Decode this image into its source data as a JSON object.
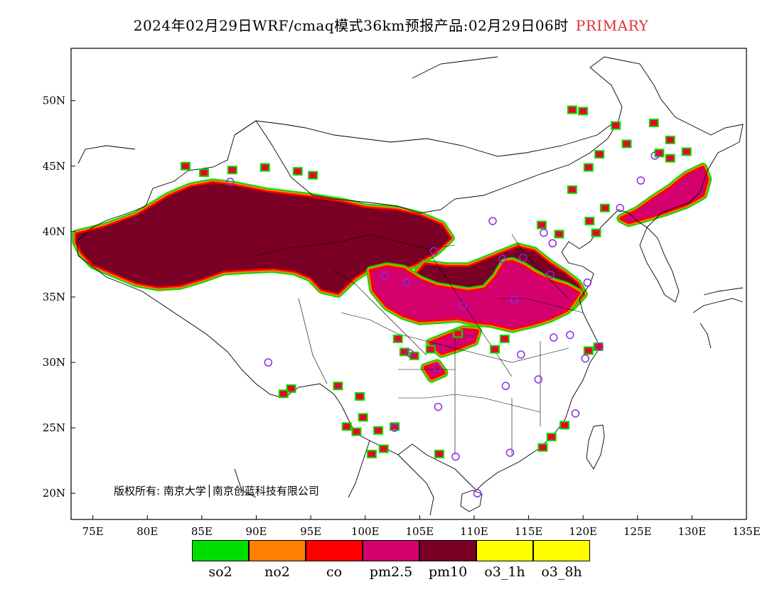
{
  "title": {
    "main": "2024年02月29日WRF/cmaq模式36km预报产品:02月29日06时",
    "tag": "PRIMARY",
    "tag_color": "#e03030"
  },
  "copyright": "版权所有: 南京大学│南京创蓝科技有限公司",
  "axes": {
    "lon_ticks": [
      "75E",
      "80E",
      "85E",
      "90E",
      "95E",
      "100E",
      "105E",
      "110E",
      "115E",
      "120E",
      "125E",
      "130E",
      "135E"
    ],
    "lat_ticks": [
      "50N",
      "45N",
      "40N",
      "35N",
      "30N",
      "25N",
      "20N"
    ],
    "lon_range": [
      73,
      135
    ],
    "lat_range": [
      18,
      54
    ]
  },
  "legend": [
    {
      "label": "so2",
      "color": "#00dd00"
    },
    {
      "label": "no2",
      "color": "#ff8000"
    },
    {
      "label": "co",
      "color": "#ff0000"
    },
    {
      "label": "pm2.5",
      "color": "#d4006e"
    },
    {
      "label": "pm10",
      "color": "#7a0025"
    },
    {
      "label": "o3_1h",
      "color": "#ffff00"
    },
    {
      "label": "o3_8h",
      "color": "#ffff00"
    }
  ],
  "pollution_regions": [
    {
      "name": "xinjiang-qinghai-inner-mongolia",
      "primary": "pm10",
      "points": [
        [
          73.5,
          39.8
        ],
        [
          76,
          40.3
        ],
        [
          79,
          41.2
        ],
        [
          82,
          42.7
        ],
        [
          84,
          43.4
        ],
        [
          86,
          43.7
        ],
        [
          88,
          43.5
        ],
        [
          91,
          43.0
        ],
        [
          95,
          42.6
        ],
        [
          98,
          42.2
        ],
        [
          100,
          41.8
        ],
        [
          103,
          41.6
        ],
        [
          105,
          41.2
        ],
        [
          107,
          40.5
        ],
        [
          107.8,
          39.5
        ],
        [
          106.5,
          38.5
        ],
        [
          104.5,
          37.5
        ],
        [
          102.5,
          37.0
        ],
        [
          100.5,
          37.3
        ],
        [
          99,
          36.5
        ],
        [
          97.5,
          35.3
        ],
        [
          96,
          35.6
        ],
        [
          95,
          36.5
        ],
        [
          93.5,
          37.0
        ],
        [
          91.5,
          37.2
        ],
        [
          89,
          37.1
        ],
        [
          87,
          37.0
        ],
        [
          85,
          36.4
        ],
        [
          83,
          35.9
        ],
        [
          81,
          35.8
        ],
        [
          79,
          36.1
        ],
        [
          77,
          36.8
        ],
        [
          75,
          37.5
        ],
        [
          74,
          38.4
        ],
        [
          73.5,
          39.2
        ]
      ]
    },
    {
      "name": "north-china-plain-pm10",
      "primary": "pm10",
      "points": [
        [
          105.5,
          37.5
        ],
        [
          107.5,
          37.3
        ],
        [
          109.5,
          37.3
        ],
        [
          111,
          37.8
        ],
        [
          112.5,
          38.3
        ],
        [
          114,
          38.8
        ],
        [
          115.5,
          38.5
        ],
        [
          117,
          37.5
        ],
        [
          118.3,
          36.8
        ],
        [
          119.5,
          36.0
        ],
        [
          120,
          35.2
        ],
        [
          119,
          34.3
        ],
        [
          117.5,
          33.7
        ],
        [
          116,
          33.3
        ],
        [
          114,
          33.0
        ],
        [
          112,
          33.2
        ],
        [
          110.5,
          33.4
        ],
        [
          109,
          33.6
        ],
        [
          107.5,
          34.0
        ],
        [
          106,
          34.5
        ],
        [
          105,
          35.5
        ],
        [
          104.5,
          36.5
        ]
      ]
    },
    {
      "name": "loess-pm25",
      "primary": "pm2.5",
      "points": [
        [
          100.5,
          37.0
        ],
        [
          102,
          37.3
        ],
        [
          103.5,
          37.1
        ],
        [
          105,
          36.3
        ],
        [
          106.5,
          35.8
        ],
        [
          108,
          35.6
        ],
        [
          109.5,
          35.4
        ],
        [
          111,
          35.6
        ],
        [
          112,
          36.5
        ],
        [
          112.8,
          37.6
        ],
        [
          113.5,
          37.7
        ],
        [
          114.6,
          37.3
        ],
        [
          115.5,
          36.8
        ],
        [
          117,
          36.2
        ],
        [
          118.5,
          35.8
        ],
        [
          119.6,
          35.3
        ],
        [
          118.5,
          34.0
        ],
        [
          117,
          33.4
        ],
        [
          115.5,
          33.0
        ],
        [
          113.5,
          32.6
        ],
        [
          111.5,
          33.0
        ],
        [
          110,
          33.1
        ],
        [
          108.5,
          33.4
        ],
        [
          107,
          33.3
        ],
        [
          105,
          33.2
        ],
        [
          103.5,
          33.6
        ],
        [
          102,
          34.3
        ],
        [
          100.8,
          35.5
        ]
      ]
    },
    {
      "name": "northeast-pm25",
      "primary": "pm2.5",
      "points": [
        [
          123.5,
          41.0
        ],
        [
          125,
          41.6
        ],
        [
          126.5,
          42.5
        ],
        [
          128,
          43.3
        ],
        [
          129.5,
          44.3
        ],
        [
          131,
          44.9
        ],
        [
          131.4,
          44.0
        ],
        [
          131,
          42.8
        ],
        [
          129.5,
          42.1
        ],
        [
          127.5,
          41.5
        ],
        [
          125.5,
          41.0
        ],
        [
          124.2,
          40.7
        ]
      ]
    },
    {
      "name": "sichuan-basin",
      "primary": "pm2.5",
      "points": [
        [
          106,
          31.5
        ],
        [
          107.5,
          32.0
        ],
        [
          109,
          32.5
        ],
        [
          110.3,
          32.4
        ],
        [
          110,
          31.6
        ],
        [
          108.5,
          31.1
        ],
        [
          107,
          30.7
        ]
      ]
    },
    {
      "name": "chongqing-patch",
      "primary": "pm2.5",
      "points": [
        [
          105.5,
          29.6
        ],
        [
          106.6,
          29.9
        ],
        [
          107.2,
          29.2
        ],
        [
          106.1,
          28.8
        ]
      ]
    }
  ],
  "spots": [
    [
      83.5,
      45.0
    ],
    [
      85.2,
      44.5
    ],
    [
      87.8,
      44.7
    ],
    [
      90.8,
      44.9
    ],
    [
      93.8,
      44.6
    ],
    [
      95.2,
      44.3
    ],
    [
      119,
      49.3
    ],
    [
      120,
      49.2
    ],
    [
      123,
      48.1
    ],
    [
      126.5,
      48.3
    ],
    [
      128,
      47.0
    ],
    [
      124,
      46.7
    ],
    [
      127,
      46.0
    ],
    [
      128,
      45.6
    ],
    [
      129.5,
      46.1
    ],
    [
      121.5,
      45.9
    ],
    [
      120.5,
      44.9
    ],
    [
      119,
      43.2
    ],
    [
      122,
      41.8
    ],
    [
      120.6,
      40.8
    ],
    [
      121.2,
      39.9
    ],
    [
      117.8,
      39.8
    ],
    [
      116.2,
      40.5
    ],
    [
      103,
      31.8
    ],
    [
      104.5,
      30.5
    ],
    [
      106,
      31.0
    ],
    [
      103.6,
      30.8
    ],
    [
      93.2,
      28.0
    ],
    [
      92.5,
      27.6
    ],
    [
      97.5,
      28.2
    ],
    [
      99.5,
      27.4
    ],
    [
      99.8,
      25.8
    ],
    [
      99.2,
      24.7
    ],
    [
      101.2,
      24.8
    ],
    [
      102.7,
      25.1
    ],
    [
      101.7,
      23.4
    ],
    [
      98.3,
      25.1
    ],
    [
      100.6,
      23.0
    ],
    [
      111.9,
      31.0
    ],
    [
      112.8,
      31.8
    ],
    [
      120.5,
      30.9
    ],
    [
      121.4,
      31.2
    ],
    [
      118.3,
      25.2
    ],
    [
      117.1,
      24.3
    ],
    [
      116.3,
      23.5
    ],
    [
      106.8,
      23.0
    ],
    [
      108.5,
      32.2
    ]
  ],
  "cities": [
    [
      87.6,
      43.8
    ],
    [
      91.1,
      30.0
    ],
    [
      101.8,
      36.6
    ],
    [
      103.8,
      36.1
    ],
    [
      106.3,
      38.5
    ],
    [
      111.7,
      40.8
    ],
    [
      116.4,
      39.9
    ],
    [
      117.2,
      39.1
    ],
    [
      114.5,
      38.0
    ],
    [
      112.6,
      37.9
    ],
    [
      113.7,
      34.8
    ],
    [
      108.9,
      34.3
    ],
    [
      117.0,
      36.7
    ],
    [
      120.4,
      36.1
    ],
    [
      117.3,
      31.9
    ],
    [
      118.8,
      32.1
    ],
    [
      120.2,
      30.3
    ],
    [
      121.5,
      31.2
    ],
    [
      114.3,
      30.6
    ],
    [
      112.9,
      28.2
    ],
    [
      115.9,
      28.7
    ],
    [
      119.3,
      26.1
    ],
    [
      113.3,
      23.1
    ],
    [
      108.3,
      22.8
    ],
    [
      110.3,
      20.0
    ],
    [
      106.7,
      26.6
    ],
    [
      102.7,
      25.0
    ],
    [
      104.1,
      30.7
    ],
    [
      106.6,
      29.6
    ],
    [
      125.3,
      43.9
    ],
    [
      126.6,
      45.8
    ],
    [
      123.4,
      41.8
    ]
  ]
}
